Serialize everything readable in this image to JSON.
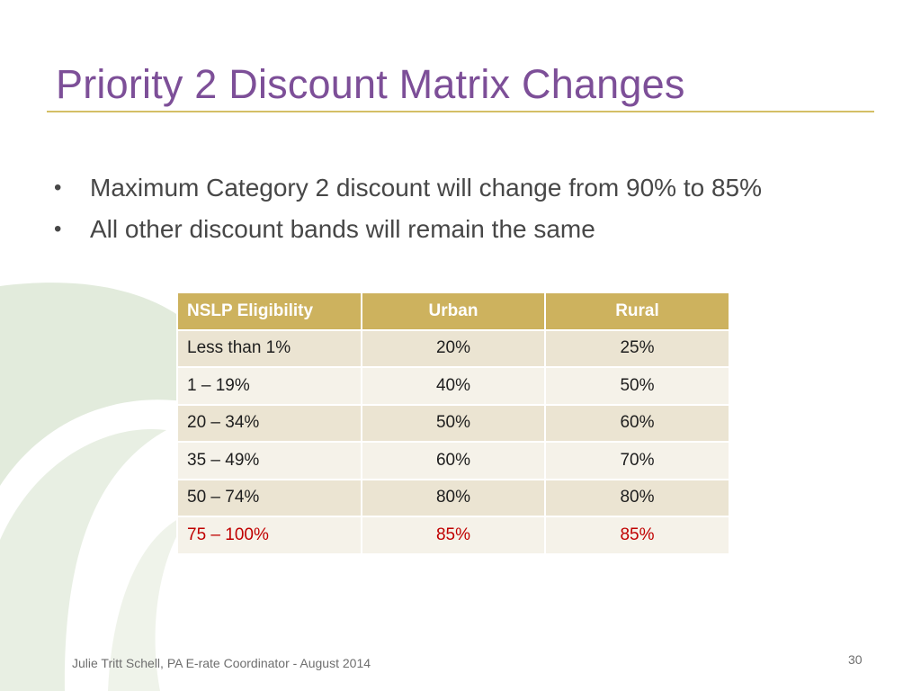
{
  "slide": {
    "title": "Priority 2 Discount Matrix Changes",
    "bullets": [
      "Maximum Category 2 discount will change from 90% to 85%",
      "All other discount bands will remain the same"
    ],
    "table": {
      "headers": [
        "NSLP Eligibility",
        "Urban",
        "Rural"
      ],
      "rows": [
        [
          "Less than 1%",
          "20%",
          "25%"
        ],
        [
          "1 – 19%",
          "40%",
          "50%"
        ],
        [
          "20 – 34%",
          "50%",
          "60%"
        ],
        [
          "35 – 49%",
          "60%",
          "70%"
        ],
        [
          "50 – 74%",
          "80%",
          "80%"
        ],
        [
          "75 – 100%",
          "85%",
          "85%"
        ]
      ]
    },
    "footer": "Julie Tritt Schell, PA E-rate Coordinator - August 2014",
    "page_number": "30"
  },
  "colors": {
    "title": "#7d4f98",
    "accent_rule": "#d4bf66",
    "header_fill": "#cdb25e",
    "row_fill_dark": "#ebe4d2",
    "row_fill_light": "#f5f2e9",
    "highlight_text": "#c00000"
  }
}
